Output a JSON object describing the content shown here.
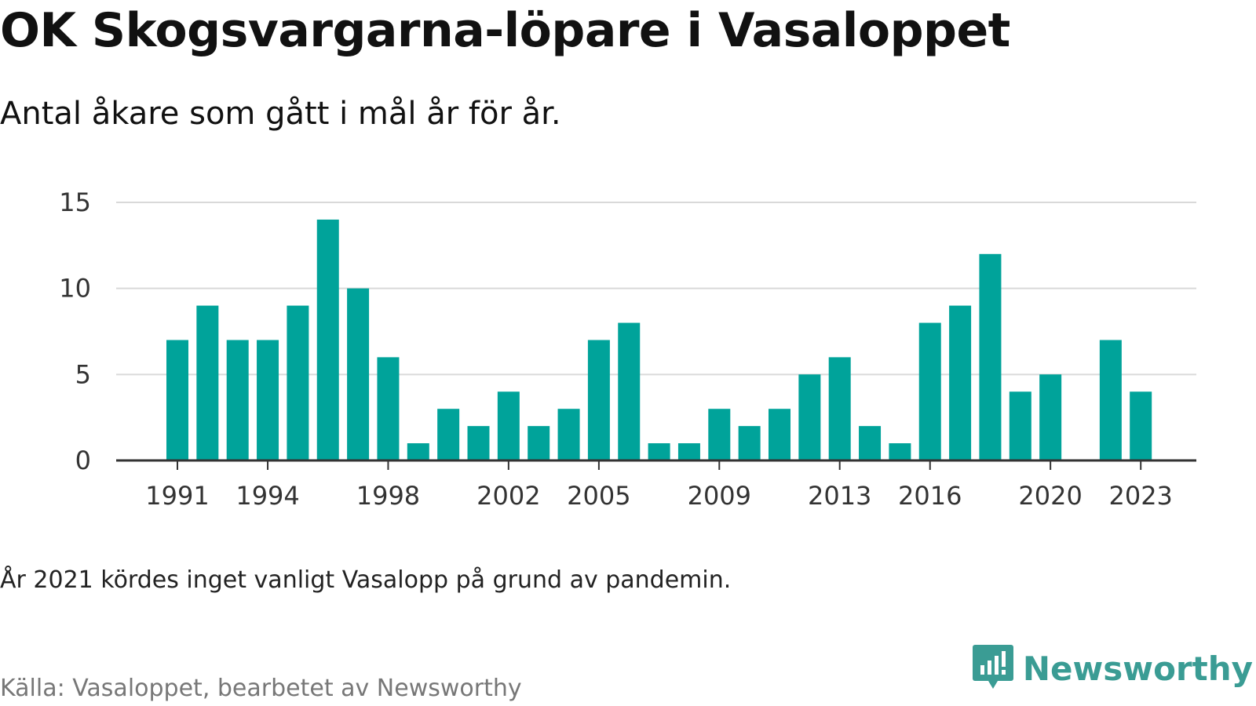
{
  "header": {
    "title": "OK Skogsvargarna-löpare i Vasaloppet",
    "subtitle": "Antal åkare som gått i mål år för år."
  },
  "footer": {
    "note": "År 2021 kördes inget vanligt Vasalopp på grund av pandemin.",
    "source": "Källa: Vasaloppet, bearbetet av Newsworthy",
    "brand": "Newsworthy",
    "brand_icon": "newsworthy-logo-icon"
  },
  "colors": {
    "bar": "#00a39a",
    "gridline": "#d9d9d9",
    "axis": "#333333",
    "brand": "#3a9c94"
  },
  "chart_data": {
    "type": "bar",
    "title": "",
    "xlabel": "",
    "ylabel": "",
    "ylim": [
      0,
      15
    ],
    "yticks": [
      0,
      5,
      10,
      15
    ],
    "grid": true,
    "categories": [
      "1991",
      "1992",
      "1993",
      "1994",
      "1995",
      "1996",
      "1997",
      "1998",
      "1999",
      "2000",
      "2001",
      "2002",
      "2003",
      "2004",
      "2005",
      "2006",
      "2007",
      "2008",
      "2009",
      "2010",
      "2011",
      "2012",
      "2013",
      "2014",
      "2015",
      "2016",
      "2017",
      "2018",
      "2019",
      "2020",
      "2021",
      "2022",
      "2023"
    ],
    "values": [
      7,
      9,
      7,
      7,
      9,
      14,
      10,
      6,
      1,
      3,
      2,
      4,
      2,
      3,
      7,
      8,
      1,
      1,
      3,
      2,
      3,
      5,
      6,
      2,
      1,
      8,
      9,
      12,
      4,
      5,
      null,
      7,
      4
    ],
    "xtick_labels": [
      "1991",
      "1994",
      "1998",
      "2002",
      "2005",
      "2009",
      "2013",
      "2016",
      "2020",
      "2023"
    ]
  }
}
